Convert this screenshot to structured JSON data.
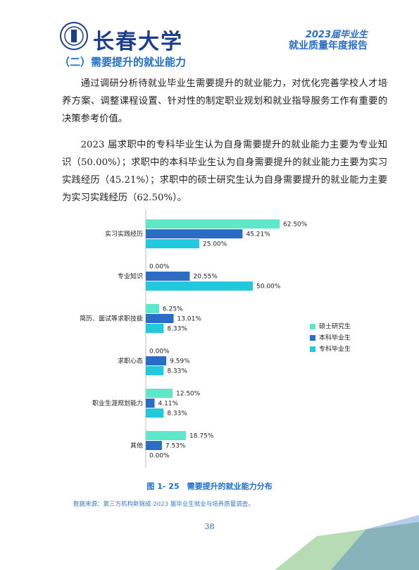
{
  "header": {
    "logo_text": "长春大学",
    "banner_line1": "2023届毕业生",
    "banner_line2": "就业质量年度报告"
  },
  "section_title": "（二）需要提升的就业能力",
  "paragraphs": [
    "通过调研分析待就业毕业生需要提升的就业能力，对优化完善学校人才培养方案、调整课程设置、针对性的制定职业规划和就业指导服务工作有重要的决策参考价值。",
    "2023 届求职中的专科毕业生认为自身需要提升的就业能力主要为专业知识（50.00%）；求职中的本科毕业生认为自身需要提升的就业能力主要为实习实践经历（45.21%）；求职中的硕士研究生认为自身需要提升的就业能力主要为实习实践经历（62.50%）。"
  ],
  "chart_data": {
    "type": "hbar",
    "title": "图 1- 25　需要提升的就业能力分布",
    "categories": [
      "实习实践经历",
      "专业知识",
      "简历、面试等求职技能",
      "求职心态",
      "职业生涯规划能力",
      "其他"
    ],
    "series": [
      {
        "name": "硕士研究生",
        "color": "#5ee8c9",
        "values": [
          62.5,
          0.0,
          6.25,
          0.0,
          12.5,
          18.75
        ],
        "value_labels": [
          "62.50%",
          "0.00%",
          "6.25%",
          "0.00%",
          "12.50%",
          "18.75%"
        ]
      },
      {
        "name": "本科毕业生",
        "color": "#2a6cc6",
        "values": [
          45.21,
          20.55,
          13.01,
          9.59,
          4.11,
          7.53
        ],
        "value_labels": [
          "45.21%",
          "20.55%",
          "13.01%",
          "9.59%",
          "4.11%",
          "7.53%"
        ]
      },
      {
        "name": "专科毕业生",
        "color": "#22c8dc",
        "values": [
          25.0,
          50.0,
          8.33,
          8.33,
          8.33,
          0.0
        ],
        "value_labels": [
          "25.00%",
          "50.00%",
          "8.33%",
          "8.33%",
          "8.33%",
          "0.00%"
        ]
      }
    ],
    "legend": "right"
  },
  "source": "数据来源：第三方机构新锦成-2023 届毕业生就业与培养质量调查。",
  "page_number": "38"
}
